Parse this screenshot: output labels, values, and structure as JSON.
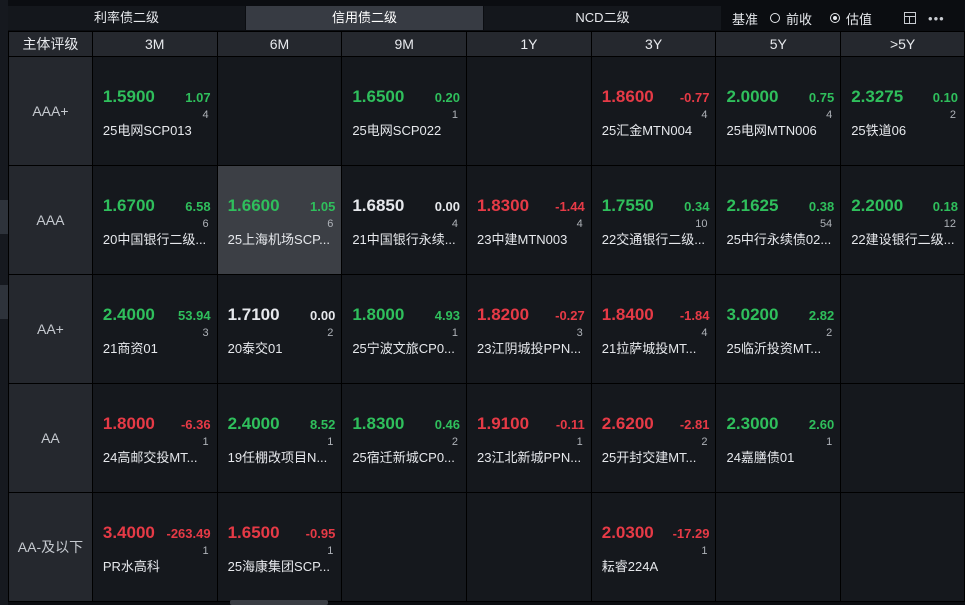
{
  "tabs": [
    {
      "label": "利率债二级",
      "active": false
    },
    {
      "label": "信用债二级",
      "active": true
    },
    {
      "label": "NCD二级",
      "active": false
    }
  ],
  "toolbar": {
    "basis_label": "基准",
    "options": [
      {
        "label": "前收",
        "selected": false
      },
      {
        "label": "估值",
        "selected": true
      }
    ],
    "layout_icon": "layout-icon",
    "more_icon": "more-icon",
    "more_glyph": "•••"
  },
  "grid": {
    "corner": "主体评级",
    "columns": [
      "3M",
      "6M",
      "9M",
      "1Y",
      "3Y",
      "5Y",
      ">5Y"
    ],
    "rows": [
      {
        "rating": "AAA+",
        "cells": [
          {
            "yield": "1.5900",
            "change": "1.07",
            "count": "4",
            "bond": "25电网SCP013",
            "dir": "dn"
          },
          null,
          {
            "yield": "1.6500",
            "change": "0.20",
            "count": "1",
            "bond": "25电网SCP022",
            "dir": "dn"
          },
          null,
          {
            "yield": "1.8600",
            "change": "-0.77",
            "count": "4",
            "bond": "25汇金MTN004",
            "dir": "up"
          },
          {
            "yield": "2.0000",
            "change": "0.75",
            "count": "4",
            "bond": "25电网MTN006",
            "dir": "dn"
          },
          {
            "yield": "2.3275",
            "change": "0.10",
            "count": "2",
            "bond": "25铁道06",
            "dir": "dn"
          }
        ]
      },
      {
        "rating": "AAA",
        "cells": [
          {
            "yield": "1.6700",
            "change": "6.58",
            "count": "6",
            "bond": "20中国银行二级...",
            "dir": "dn"
          },
          {
            "yield": "1.6600",
            "change": "1.05",
            "count": "6",
            "bond": "25上海机场SCP...",
            "dir": "dn",
            "selected": true
          },
          {
            "yield": "1.6850",
            "change": "0.00",
            "count": "4",
            "bond": "21中国银行永续...",
            "dir": "flat"
          },
          {
            "yield": "1.8300",
            "change": "-1.44",
            "count": "4",
            "bond": "23中建MTN003",
            "dir": "up"
          },
          {
            "yield": "1.7550",
            "change": "0.34",
            "count": "10",
            "bond": "22交通银行二级...",
            "dir": "dn"
          },
          {
            "yield": "2.1625",
            "change": "0.38",
            "count": "54",
            "bond": "25中行永续债02...",
            "dir": "dn"
          },
          {
            "yield": "2.2000",
            "change": "0.18",
            "count": "12",
            "bond": "22建设银行二级...",
            "dir": "dn"
          }
        ]
      },
      {
        "rating": "AA+",
        "cells": [
          {
            "yield": "2.4000",
            "change": "53.94",
            "count": "3",
            "bond": "21商资01",
            "dir": "dn"
          },
          {
            "yield": "1.7100",
            "change": "0.00",
            "count": "2",
            "bond": "20泰交01",
            "dir": "flat"
          },
          {
            "yield": "1.8000",
            "change": "4.93",
            "count": "1",
            "bond": "25宁波文旅CP0...",
            "dir": "dn"
          },
          {
            "yield": "1.8200",
            "change": "-0.27",
            "count": "3",
            "bond": "23江阴城投PPN...",
            "dir": "up"
          },
          {
            "yield": "1.8400",
            "change": "-1.84",
            "count": "4",
            "bond": "21拉萨城投MT...",
            "dir": "up"
          },
          {
            "yield": "3.0200",
            "change": "2.82",
            "count": "2",
            "bond": "25临沂投资MT...",
            "dir": "dn"
          },
          null
        ]
      },
      {
        "rating": "AA",
        "cells": [
          {
            "yield": "1.8000",
            "change": "-6.36",
            "count": "1",
            "bond": "24高邮交投MT...",
            "dir": "up"
          },
          {
            "yield": "2.4000",
            "change": "8.52",
            "count": "1",
            "bond": "19任棚改项目N...",
            "dir": "dn"
          },
          {
            "yield": "1.8300",
            "change": "0.46",
            "count": "2",
            "bond": "25宿迁新城CP0...",
            "dir": "dn"
          },
          {
            "yield": "1.9100",
            "change": "-0.11",
            "count": "1",
            "bond": "23江北新城PPN...",
            "dir": "up"
          },
          {
            "yield": "2.6200",
            "change": "-2.81",
            "count": "2",
            "bond": "25开封交建MT...",
            "dir": "up"
          },
          {
            "yield": "2.3000",
            "change": "2.60",
            "count": "1",
            "bond": "24嘉膳债01",
            "dir": "dn"
          },
          null
        ]
      },
      {
        "rating": "AA-及以下",
        "cells": [
          {
            "yield": "3.4000",
            "change": "-263.49",
            "count": "1",
            "bond": "PR水高科",
            "dir": "up"
          },
          {
            "yield": "1.6500",
            "change": "-0.95",
            "count": "1",
            "bond": "25海康集团SCP...",
            "dir": "up"
          },
          null,
          null,
          {
            "yield": "2.0300",
            "change": "-17.29",
            "count": "1",
            "bond": "耘睿224A",
            "dir": "up"
          },
          null,
          null
        ]
      }
    ]
  },
  "colors": {
    "up": "#e63a46",
    "down": "#2fbf5c",
    "flat": "#e6e8ec"
  }
}
